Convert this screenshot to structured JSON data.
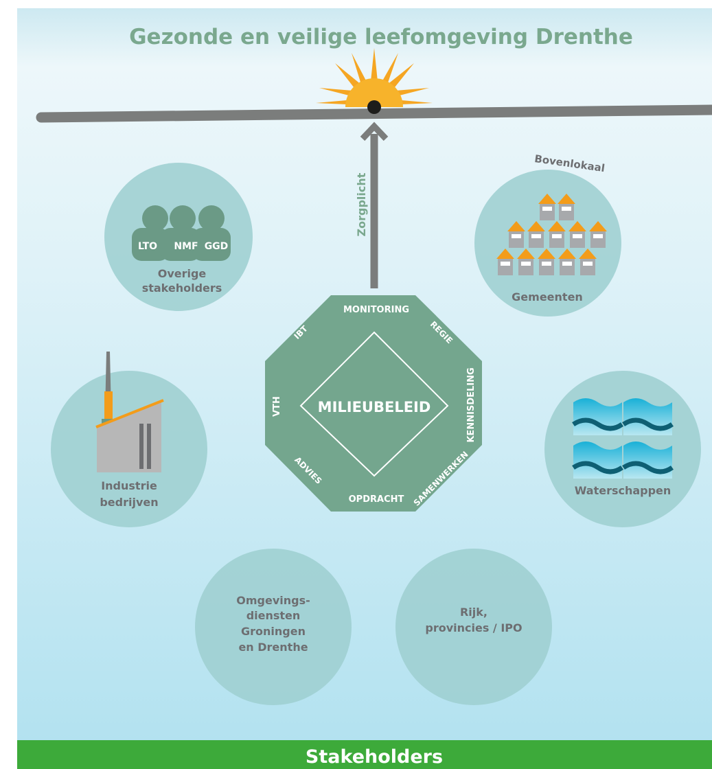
{
  "title": "Gezonde en veilige leefomgeving Drenthe",
  "footer": "Stakeholders",
  "arrow_label": "Zorgplicht",
  "center": {
    "label": "MILIEUBELEID",
    "tasks": {
      "monitoring": "MONITORING",
      "regie": "REGIE",
      "kennisdeling": "KENNISDELING",
      "samenwerken": "SAMENWERKEN",
      "opdracht": "OPDRACHT",
      "advies": "ADVIES",
      "vth": "VTH",
      "ibt": "IBT"
    }
  },
  "stakeholders": {
    "overige": {
      "line1": "Overige",
      "line2": "stakeholders",
      "badges": [
        "LTO",
        "NMF",
        "GGD"
      ]
    },
    "gemeenten": {
      "label": "Gemeenten",
      "arc_label": "Bovenlokaal"
    },
    "industrie": {
      "line1": "Industrie",
      "line2": "bedrijven"
    },
    "waterschappen": {
      "label": "Waterschappen"
    },
    "omgevingsdiensten": {
      "line1": "Omgevings-",
      "line2": "diensten",
      "line3": "Groningen",
      "line4": "en Drenthe"
    },
    "rijk": {
      "line1": "Rijk,",
      "line2": "provincies / IPO"
    }
  },
  "colors": {
    "title": "#7aa88e",
    "octagon": "#74a68e",
    "circle": "#9ecfd0",
    "text_gray": "#6d6e71",
    "footer_bg": "#3daa3a",
    "sun": "#f5a623",
    "roof": "#f39c1a",
    "water": "#1aa0c8"
  }
}
